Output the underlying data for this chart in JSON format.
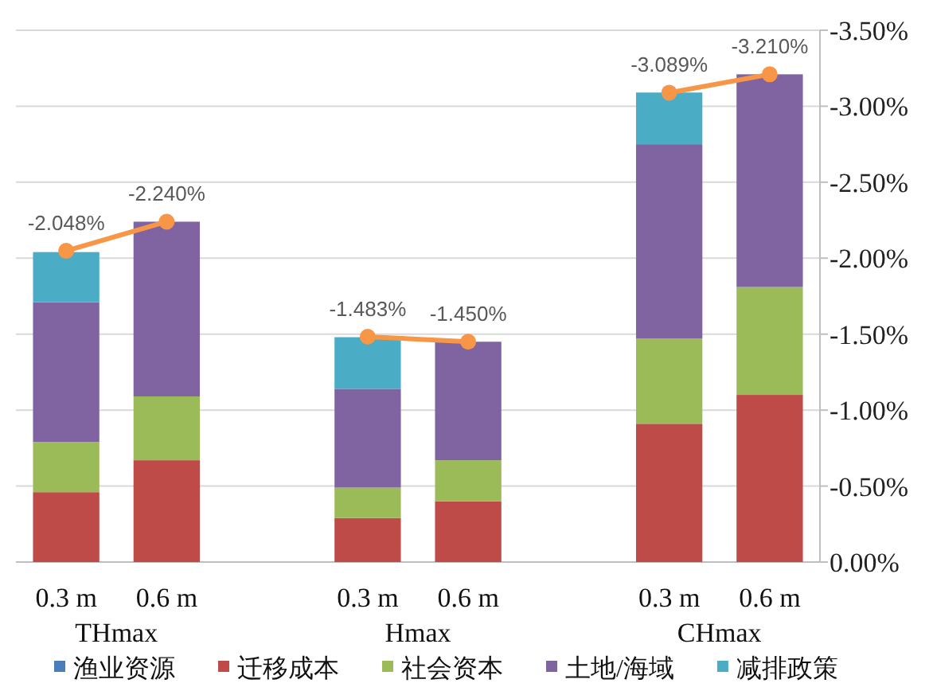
{
  "chart_data": {
    "type": "bar",
    "stacked": true,
    "categories": [
      "0.3 m",
      "0.6 m",
      null,
      "0.3 m",
      "0.6 m",
      null,
      "0.3 m",
      "0.6 m"
    ],
    "series": [
      {
        "name": "渔业资源",
        "color": "#4a7ebb",
        "values": [
          null,
          null,
          null,
          null,
          null,
          null,
          null,
          null
        ]
      },
      {
        "name": "迁移成本",
        "color": "#be4b48",
        "values": [
          -0.46,
          -0.67,
          null,
          -0.29,
          -0.4,
          null,
          -0.91,
          -1.1
        ]
      },
      {
        "name": "社会资本",
        "color": "#9bbb59",
        "values": [
          -0.33,
          -0.42,
          null,
          -0.2,
          -0.27,
          null,
          -0.56,
          -0.71
        ]
      },
      {
        "name": "土地/海域",
        "color": "#8064a2",
        "values": [
          -0.92,
          -1.15,
          null,
          -0.65,
          -0.78,
          null,
          -1.28,
          -1.4
        ]
      },
      {
        "name": "减排政策",
        "color": "#4bacc6",
        "values": [
          -0.33,
          null,
          null,
          -0.34,
          null,
          null,
          -0.34,
          null
        ]
      },
      {
        "type": "line",
        "color": "#f79646",
        "marker": "circle",
        "values": [
          -2.048,
          -2.24,
          null,
          -1.483,
          -1.45,
          null,
          -3.089,
          -3.21
        ],
        "value_labels": [
          "-2.048%",
          "-2.240%",
          null,
          "-1.483%",
          "-1.450%",
          null,
          "-3.089%",
          "-3.210%"
        ]
      }
    ],
    "annotations": [
      "THmax",
      "Hmax",
      "CHmax"
    ],
    "ylim": [
      0,
      -3.5
    ],
    "yticks": [
      {
        "value": 0,
        "label": "0.00%"
      },
      {
        "value": -0.5,
        "label": "-0.50%"
      },
      {
        "value": -1,
        "label": "-1.00%"
      },
      {
        "value": -1.5,
        "label": "-1.50%"
      },
      {
        "value": -2,
        "label": "-2.00%"
      },
      {
        "value": -2.5,
        "label": "-2.50%"
      },
      {
        "value": -3,
        "label": "-3.00%"
      },
      {
        "value": -3.5,
        "label": "-3.50%"
      }
    ],
    "grid": "y",
    "legend": "bottom"
  }
}
